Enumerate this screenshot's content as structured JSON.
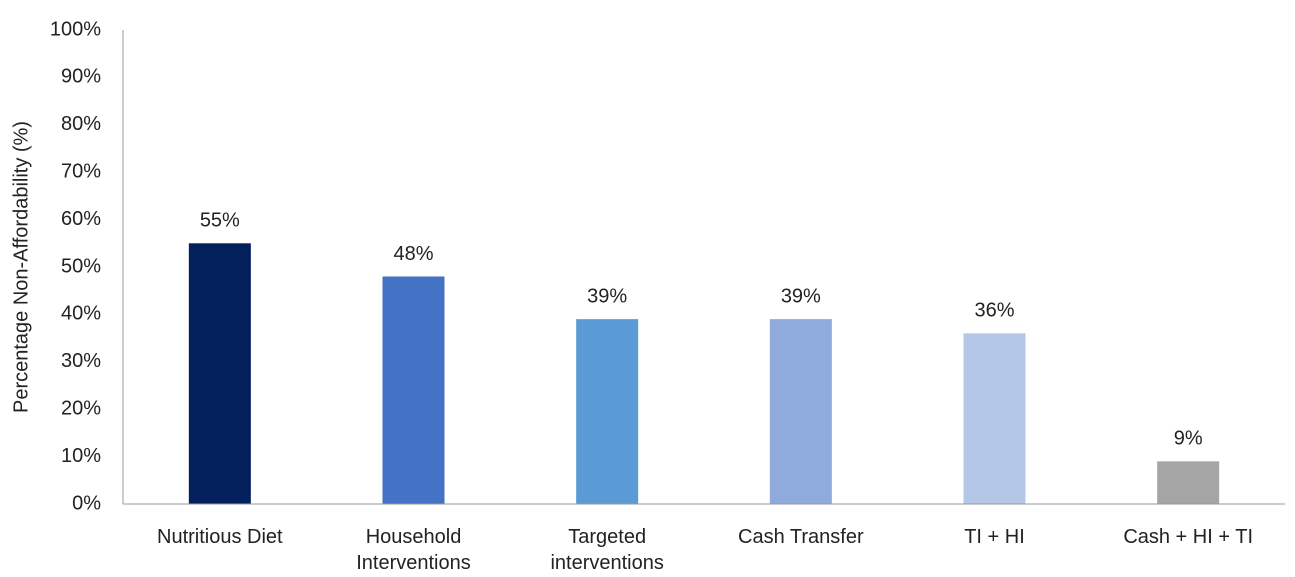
{
  "chart_data": {
    "type": "bar",
    "y_label": "Percentage Non-Affordability (%)",
    "categories": [
      "Nutritious Diet",
      "Household Interventions",
      "Targeted interventions",
      "Cash Transfer",
      "TI + HI",
      "Cash + HI + TI"
    ],
    "values": [
      55,
      48,
      39,
      39,
      36,
      9
    ],
    "value_labels": [
      "55%",
      "48%",
      "39%",
      "39%",
      "36%",
      "9%"
    ],
    "colors": [
      "#03205c",
      "#4472c4",
      "#5b9bd5",
      "#8faadc",
      "#b4c7e7",
      "#a5a5a5"
    ],
    "ylim": [
      0,
      100
    ],
    "yticks": [
      {
        "value": 0,
        "label": "0%"
      },
      {
        "value": 10,
        "label": "10%"
      },
      {
        "value": 20,
        "label": "20%"
      },
      {
        "value": 30,
        "label": "30%"
      },
      {
        "value": 40,
        "label": "40%"
      },
      {
        "value": 50,
        "label": "50%"
      },
      {
        "value": 60,
        "label": "60%"
      },
      {
        "value": 70,
        "label": "70%"
      },
      {
        "value": 80,
        "label": "80%"
      },
      {
        "value": 90,
        "label": "90%"
      },
      {
        "value": 100,
        "label": "100%"
      }
    ],
    "grid": false
  }
}
